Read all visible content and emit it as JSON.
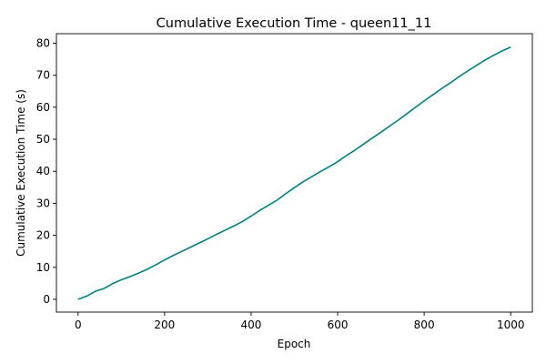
{
  "chart_data": {
    "type": "line",
    "title": "Cumulative Execution Time - queen11_11",
    "xlabel": "Epoch",
    "ylabel": "Cumulative Execution Time (s)",
    "xlim": [
      -50,
      1050
    ],
    "ylim": [
      -4,
      83
    ],
    "xticks": [
      0,
      200,
      400,
      600,
      800,
      1000
    ],
    "yticks": [
      0,
      10,
      20,
      30,
      40,
      50,
      60,
      70,
      80
    ],
    "grid": false,
    "legend": "none",
    "color": "#008080",
    "series": [
      {
        "x": [
          0,
          20,
          40,
          60,
          80,
          100,
          120,
          140,
          160,
          180,
          200,
          220,
          240,
          260,
          280,
          300,
          320,
          340,
          360,
          380,
          400,
          420,
          440,
          460,
          480,
          500,
          520,
          540,
          560,
          580,
          600,
          620,
          640,
          660,
          680,
          700,
          720,
          740,
          760,
          780,
          800,
          820,
          840,
          860,
          880,
          900,
          920,
          940,
          960,
          980,
          1000
        ],
        "y": [
          0,
          1.0,
          2.5,
          3.4,
          4.9,
          6.1,
          7.1,
          8.2,
          9.4,
          10.8,
          12.3,
          13.7,
          15.0,
          16.3,
          17.6,
          18.9,
          20.3,
          21.6,
          22.9,
          24.3,
          26.0,
          27.8,
          29.4,
          31.0,
          33.0,
          34.9,
          36.7,
          38.3,
          39.9,
          41.4,
          43.0,
          44.9,
          46.6,
          48.5,
          50.4,
          52.2,
          54.1,
          56.0,
          58.0,
          60.0,
          62.0,
          63.9,
          65.8,
          67.6,
          69.5,
          71.3,
          73.0,
          74.7,
          76.2,
          77.6,
          78.8
        ]
      }
    ]
  }
}
